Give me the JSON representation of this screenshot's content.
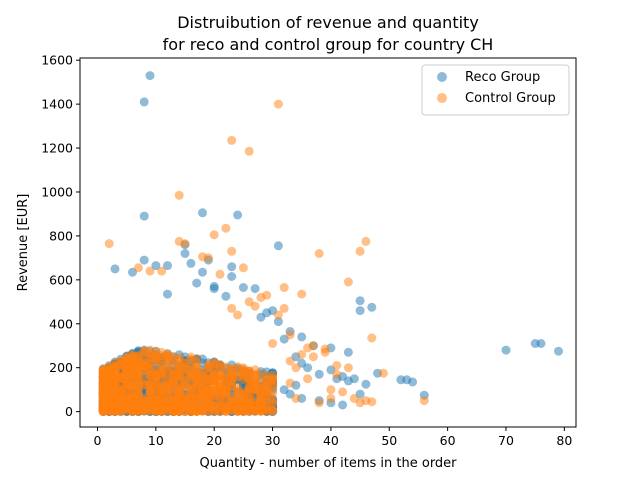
{
  "chart_data": {
    "type": "scatter",
    "title_line1": "Distruibution of revenue and quantity",
    "title_line2": "for reco and control group for country CH",
    "xlabel": "Quantity - number of items in the order",
    "ylabel": "Revenue [EUR]",
    "xlim": [
      -3,
      82
    ],
    "ylim": [
      -70,
      1610
    ],
    "xticks": [
      0,
      10,
      20,
      30,
      40,
      50,
      60,
      70,
      80
    ],
    "yticks": [
      0,
      200,
      400,
      600,
      800,
      1000,
      1200,
      1400,
      1600
    ],
    "legend_position": "upper-right",
    "grid": false,
    "colors": {
      "reco": "#1f77b4",
      "control": "#ff7f0e"
    },
    "dense_cluster": {
      "x_max": 30,
      "y_max": 330,
      "note_free": true
    },
    "series": [
      {
        "name": "Reco Group",
        "color": "#1f77b4",
        "outliers": [
          [
            9,
            1530
          ],
          [
            8,
            1410
          ],
          [
            8,
            890
          ],
          [
            18,
            905
          ],
          [
            24,
            895
          ],
          [
            15,
            760
          ],
          [
            31,
            755
          ],
          [
            8,
            690
          ],
          [
            16,
            675
          ],
          [
            3,
            650
          ],
          [
            10,
            665
          ],
          [
            12,
            665
          ],
          [
            6,
            635
          ],
          [
            18,
            635
          ],
          [
            23,
            660
          ],
          [
            23,
            615
          ],
          [
            15,
            720
          ],
          [
            19,
            690
          ],
          [
            17,
            585
          ],
          [
            20,
            570
          ],
          [
            25,
            565
          ],
          [
            27,
            560
          ],
          [
            20,
            560
          ],
          [
            12,
            535
          ],
          [
            22,
            525
          ],
          [
            30,
            460
          ],
          [
            29,
            450
          ],
          [
            28,
            430
          ],
          [
            31,
            410
          ],
          [
            33,
            365
          ],
          [
            32,
            330
          ],
          [
            35,
            340
          ],
          [
            37,
            300
          ],
          [
            40,
            290
          ],
          [
            43,
            270
          ],
          [
            34,
            250
          ],
          [
            35,
            220
          ],
          [
            36,
            200
          ],
          [
            38,
            170
          ],
          [
            40,
            190
          ],
          [
            41,
            150
          ],
          [
            42,
            160
          ],
          [
            45,
            505
          ],
          [
            45,
            460
          ],
          [
            47,
            475
          ],
          [
            45,
            80
          ],
          [
            46,
            125
          ],
          [
            44,
            150
          ],
          [
            48,
            175
          ],
          [
            52,
            145
          ],
          [
            53,
            145
          ],
          [
            54,
            135
          ],
          [
            56,
            75
          ],
          [
            70,
            280
          ],
          [
            75,
            310
          ],
          [
            76,
            310
          ],
          [
            79,
            275
          ],
          [
            32,
            100
          ],
          [
            33,
            80
          ],
          [
            35,
            60
          ],
          [
            38,
            50
          ],
          [
            40,
            40
          ],
          [
            42,
            30
          ],
          [
            43,
            140
          ],
          [
            34,
            120
          ]
        ]
      },
      {
        "name": "Control Group",
        "color": "#ff7f0e",
        "outliers": [
          [
            31,
            1400
          ],
          [
            23,
            1235
          ],
          [
            26,
            1185
          ],
          [
            14,
            985
          ],
          [
            20,
            805
          ],
          [
            22,
            835
          ],
          [
            14,
            775
          ],
          [
            2,
            765
          ],
          [
            15,
            765
          ],
          [
            19,
            700
          ],
          [
            18,
            705
          ],
          [
            21,
            625
          ],
          [
            25,
            655
          ],
          [
            23,
            730
          ],
          [
            9,
            640
          ],
          [
            7,
            655
          ],
          [
            11,
            640
          ],
          [
            46,
            775
          ],
          [
            45,
            730
          ],
          [
            38,
            720
          ],
          [
            43,
            590
          ],
          [
            32,
            565
          ],
          [
            35,
            535
          ],
          [
            32,
            470
          ],
          [
            31,
            440
          ],
          [
            47,
            335
          ],
          [
            37,
            300
          ],
          [
            39,
            285
          ],
          [
            39,
            270
          ],
          [
            36,
            290
          ],
          [
            35,
            260
          ],
          [
            37,
            250
          ],
          [
            41,
            210
          ],
          [
            43,
            200
          ],
          [
            41,
            170
          ],
          [
            40,
            100
          ],
          [
            42,
            90
          ],
          [
            40,
            60
          ],
          [
            46,
            50
          ],
          [
            45,
            40
          ],
          [
            47,
            45
          ],
          [
            49,
            175
          ],
          [
            56,
            50
          ],
          [
            44,
            60
          ],
          [
            38,
            40
          ],
          [
            33,
            230
          ],
          [
            34,
            200
          ],
          [
            36,
            150
          ],
          [
            33,
            130
          ],
          [
            34,
            60
          ],
          [
            28,
            520
          ],
          [
            29,
            530
          ],
          [
            26,
            500
          ],
          [
            24,
            440
          ],
          [
            23,
            470
          ],
          [
            27,
            480
          ],
          [
            30,
            310
          ],
          [
            33,
            350
          ]
        ]
      }
    ]
  }
}
